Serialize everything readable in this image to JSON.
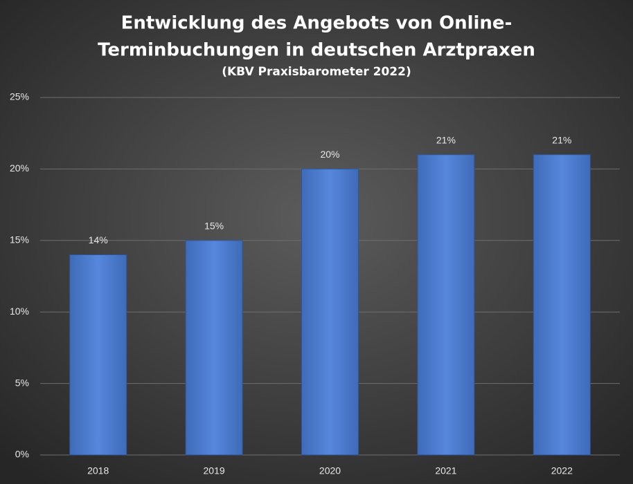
{
  "chart_data": {
    "type": "bar",
    "title": [
      "Entwicklung des Angebots von Online-",
      "Terminbuchungen in deutschen Arztpraxen"
    ],
    "subtitle": "(KBV Praxisbarometer 2022)",
    "categories": [
      "2018",
      "2019",
      "2020",
      "2021",
      "2022"
    ],
    "values": [
      14,
      15,
      20,
      21,
      21
    ],
    "value_labels": [
      "14%",
      "15%",
      "20%",
      "21%",
      "21%"
    ],
    "color": "#4f7fd0",
    "ylim": [
      0,
      25
    ],
    "yticks": [
      {
        "value": 0,
        "label": "0%"
      },
      {
        "value": 5,
        "label": "5%"
      },
      {
        "value": 10,
        "label": "10%"
      },
      {
        "value": 15,
        "label": "15%"
      },
      {
        "value": 20,
        "label": "20%"
      },
      {
        "value": 25,
        "label": "25%"
      }
    ],
    "grid": true
  }
}
